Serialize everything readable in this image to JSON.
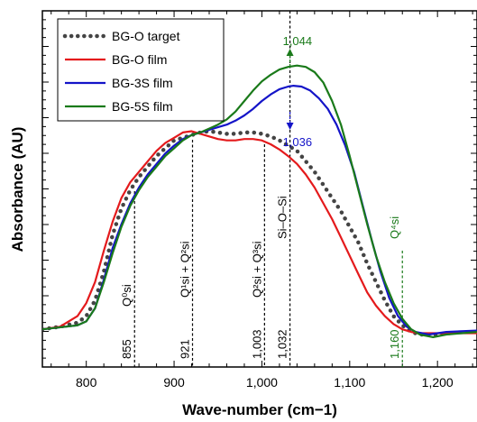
{
  "chart_data": {
    "type": "line",
    "xlabel": "Wave-number (cm−1)",
    "ylabel": "Absorbance (AU)",
    "xlim": [
      750,
      1245
    ],
    "ylim": [
      0,
      1
    ],
    "x_ticks": [
      800,
      900,
      1000,
      1100,
      1200
    ],
    "x_tick_labels": [
      "800",
      "900",
      "1,000",
      "1,100",
      "1,200"
    ],
    "legend": {
      "placement": "top-left"
    },
    "series": [
      {
        "name": "BG-O target",
        "color": "#444444",
        "style": "dotted",
        "points": [
          [
            750,
            0.02
          ],
          [
            770,
            0.03
          ],
          [
            790,
            0.045
          ],
          [
            800,
            0.07
          ],
          [
            810,
            0.13
          ],
          [
            820,
            0.24
          ],
          [
            830,
            0.38
          ],
          [
            840,
            0.48
          ],
          [
            850,
            0.55
          ],
          [
            860,
            0.6
          ],
          [
            870,
            0.64
          ],
          [
            880,
            0.68
          ],
          [
            890,
            0.71
          ],
          [
            900,
            0.74
          ],
          [
            910,
            0.75
          ],
          [
            920,
            0.76
          ],
          [
            930,
            0.77
          ],
          [
            940,
            0.775
          ],
          [
            950,
            0.77
          ],
          [
            960,
            0.765
          ],
          [
            970,
            0.765
          ],
          [
            980,
            0.77
          ],
          [
            990,
            0.77
          ],
          [
            1000,
            0.765
          ],
          [
            1010,
            0.755
          ],
          [
            1020,
            0.74
          ],
          [
            1030,
            0.72
          ],
          [
            1040,
            0.7
          ],
          [
            1050,
            0.66
          ],
          [
            1060,
            0.62
          ],
          [
            1070,
            0.57
          ],
          [
            1080,
            0.52
          ],
          [
            1090,
            0.47
          ],
          [
            1100,
            0.41
          ],
          [
            1110,
            0.35
          ],
          [
            1120,
            0.27
          ],
          [
            1130,
            0.2
          ],
          [
            1140,
            0.13
          ],
          [
            1150,
            0.07
          ],
          [
            1160,
            0.035
          ],
          [
            1170,
            0.01
          ],
          [
            1180,
            0.0
          ],
          [
            1190,
            0.0
          ],
          [
            1200,
            0.0
          ],
          [
            1210,
            0.005
          ],
          [
            1220,
            0.005
          ]
        ]
      },
      {
        "name": "BG-O film",
        "color": "#e41a1c",
        "style": "solid",
        "points": [
          [
            750,
            0.02
          ],
          [
            770,
            0.03
          ],
          [
            790,
            0.07
          ],
          [
            800,
            0.12
          ],
          [
            810,
            0.2
          ],
          [
            820,
            0.32
          ],
          [
            830,
            0.43
          ],
          [
            840,
            0.52
          ],
          [
            850,
            0.58
          ],
          [
            860,
            0.62
          ],
          [
            870,
            0.66
          ],
          [
            880,
            0.7
          ],
          [
            890,
            0.73
          ],
          [
            900,
            0.75
          ],
          [
            910,
            0.77
          ],
          [
            920,
            0.775
          ],
          [
            930,
            0.765
          ],
          [
            940,
            0.755
          ],
          [
            950,
            0.745
          ],
          [
            960,
            0.74
          ],
          [
            970,
            0.74
          ],
          [
            980,
            0.745
          ],
          [
            990,
            0.745
          ],
          [
            1000,
            0.74
          ],
          [
            1010,
            0.725
          ],
          [
            1020,
            0.705
          ],
          [
            1030,
            0.68
          ],
          [
            1040,
            0.65
          ],
          [
            1050,
            0.61
          ],
          [
            1060,
            0.56
          ],
          [
            1070,
            0.5
          ],
          [
            1080,
            0.44
          ],
          [
            1090,
            0.37
          ],
          [
            1100,
            0.3
          ],
          [
            1110,
            0.23
          ],
          [
            1120,
            0.16
          ],
          [
            1130,
            0.11
          ],
          [
            1140,
            0.07
          ],
          [
            1150,
            0.04
          ],
          [
            1160,
            0.02
          ],
          [
            1170,
            0.01
          ],
          [
            1180,
            0.005
          ],
          [
            1200,
            0.005
          ],
          [
            1220,
            0.005
          ],
          [
            1245,
            0.005
          ]
        ]
      },
      {
        "name": "BG-3S film",
        "color": "#1414c8",
        "style": "solid",
        "points": [
          [
            750,
            0.02
          ],
          [
            790,
            0.035
          ],
          [
            800,
            0.05
          ],
          [
            810,
            0.1
          ],
          [
            820,
            0.21
          ],
          [
            830,
            0.33
          ],
          [
            840,
            0.42
          ],
          [
            850,
            0.5
          ],
          [
            860,
            0.56
          ],
          [
            870,
            0.61
          ],
          [
            880,
            0.65
          ],
          [
            890,
            0.69
          ],
          [
            900,
            0.72
          ],
          [
            910,
            0.745
          ],
          [
            920,
            0.76
          ],
          [
            930,
            0.77
          ],
          [
            940,
            0.78
          ],
          [
            950,
            0.79
          ],
          [
            960,
            0.8
          ],
          [
            970,
            0.815
          ],
          [
            980,
            0.835
          ],
          [
            990,
            0.86
          ],
          [
            1000,
            0.89
          ],
          [
            1010,
            0.915
          ],
          [
            1020,
            0.935
          ],
          [
            1030,
            0.945
          ],
          [
            1036,
            0.948
          ],
          [
            1045,
            0.945
          ],
          [
            1055,
            0.93
          ],
          [
            1065,
            0.9
          ],
          [
            1075,
            0.86
          ],
          [
            1085,
            0.8
          ],
          [
            1095,
            0.72
          ],
          [
            1105,
            0.62
          ],
          [
            1115,
            0.49
          ],
          [
            1125,
            0.36
          ],
          [
            1135,
            0.24
          ],
          [
            1145,
            0.14
          ],
          [
            1155,
            0.07
          ],
          [
            1165,
            0.03
          ],
          [
            1175,
            0.01
          ],
          [
            1190,
            0.0
          ],
          [
            1210,
            0.01
          ],
          [
            1245,
            0.015
          ]
        ]
      },
      {
        "name": "BG-5S film",
        "color": "#1a7a1a",
        "style": "solid",
        "points": [
          [
            750,
            0.02
          ],
          [
            790,
            0.035
          ],
          [
            800,
            0.05
          ],
          [
            810,
            0.1
          ],
          [
            820,
            0.2
          ],
          [
            830,
            0.31
          ],
          [
            840,
            0.41
          ],
          [
            850,
            0.49
          ],
          [
            860,
            0.55
          ],
          [
            870,
            0.6
          ],
          [
            880,
            0.64
          ],
          [
            890,
            0.68
          ],
          [
            900,
            0.71
          ],
          [
            910,
            0.74
          ],
          [
            920,
            0.76
          ],
          [
            930,
            0.77
          ],
          [
            940,
            0.785
          ],
          [
            950,
            0.8
          ],
          [
            960,
            0.82
          ],
          [
            970,
            0.85
          ],
          [
            980,
            0.89
          ],
          [
            990,
            0.93
          ],
          [
            1000,
            0.965
          ],
          [
            1010,
            0.99
          ],
          [
            1020,
            1.01
          ],
          [
            1030,
            1.02
          ],
          [
            1040,
            1.025
          ],
          [
            1050,
            1.02
          ],
          [
            1060,
            1.0
          ],
          [
            1070,
            0.96
          ],
          [
            1080,
            0.89
          ],
          [
            1090,
            0.8
          ],
          [
            1100,
            0.68
          ],
          [
            1110,
            0.55
          ],
          [
            1120,
            0.42
          ],
          [
            1130,
            0.3
          ],
          [
            1140,
            0.2
          ],
          [
            1150,
            0.12
          ],
          [
            1160,
            0.06
          ],
          [
            1170,
            0.02
          ],
          [
            1180,
            0.0
          ],
          [
            1195,
            -0.01
          ],
          [
            1210,
            0.0
          ],
          [
            1245,
            0.01
          ]
        ]
      }
    ],
    "vlines": [
      {
        "x": 855,
        "tick": "855",
        "band": "Q⁰si",
        "color": "#000000"
      },
      {
        "x": 921,
        "tick": "921",
        "band": "Q¹si + Q²si",
        "color": "#000000"
      },
      {
        "x": 1003,
        "tick": "1,003",
        "band": "Q²si + Q³si",
        "color": "#000000"
      },
      {
        "x": 1032,
        "tick": "1,032",
        "band": "Si–O–Si",
        "color": "#000000"
      },
      {
        "x": 1160,
        "tick": "1,160",
        "band": "Q⁴si",
        "color": "#1a7a1a"
      }
    ],
    "annotations": [
      {
        "text": "1,044",
        "x": 1044,
        "color": "#1a7a1a",
        "arrow": "up"
      },
      {
        "text": "1,036",
        "x": 1036,
        "color": "#1414c8",
        "arrow": "down"
      }
    ]
  }
}
